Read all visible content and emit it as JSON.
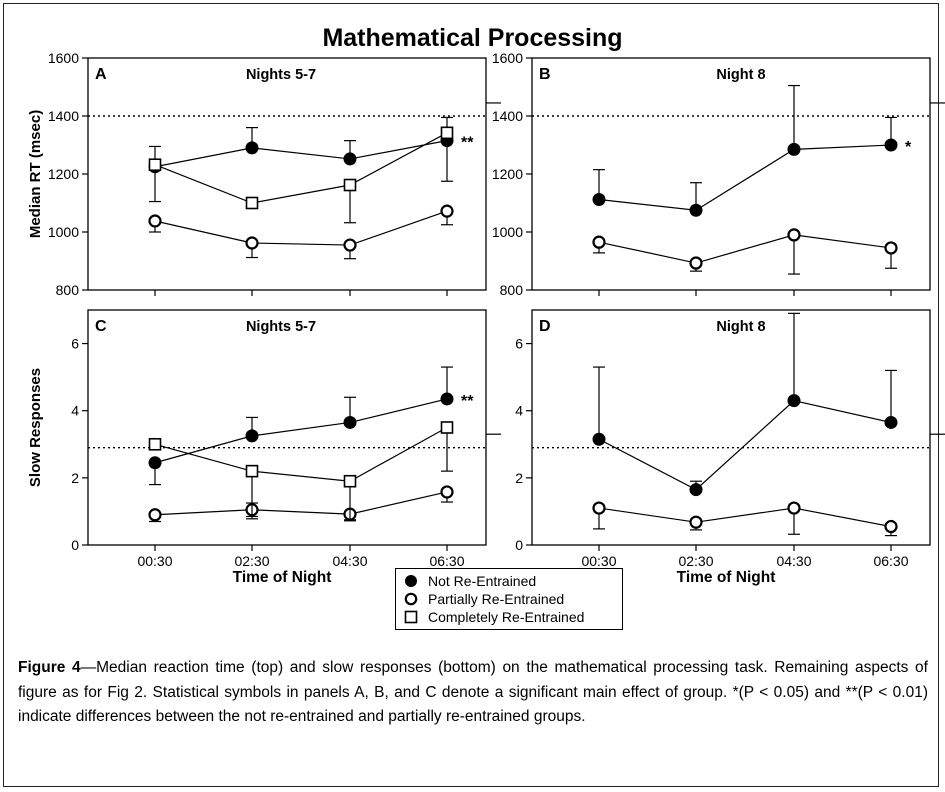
{
  "figure_title": "Mathematical Processing",
  "caption": {
    "label": "Figure 4",
    "text": "—Median reaction time (top) and slow responses (bottom) on the mathematical processing task. Remaining aspects of figure as for Fig 2. Statistical symbols in panels A, B, and C denote a significant main effect of group. *(P < 0.05) and **(P < 0.01) indicate differences between the not re-entrained and partially re-entrained groups."
  },
  "legend": [
    {
      "marker": "filled-circle",
      "label": "Not Re-Entrained"
    },
    {
      "marker": "open-circle",
      "label": "Partially Re-Entrained"
    },
    {
      "marker": "open-square",
      "label": "Completely Re-Entrained"
    }
  ],
  "chart_data": [
    {
      "panel": "A",
      "title": "Nights 5-7",
      "type": "line",
      "ylabel": "Median RT (msec)",
      "xlabel": "",
      "categories": [
        "00:30",
        "02:30",
        "04:30",
        "06:30"
      ],
      "ylim": [
        800,
        1600
      ],
      "yticks": [
        800,
        1000,
        1200,
        1400,
        1600
      ],
      "reference_line": 1400,
      "right_tick": 1445,
      "significance": "**",
      "series": [
        {
          "name": "Not Re-Entrained",
          "marker": "filled-circle",
          "values": [
            1225,
            1290,
            1252,
            1315
          ],
          "errors": [
            {
              "up": 1295,
              "down": 1105
            },
            {
              "up": 1360
            },
            {
              "up": 1315
            },
            {
              "up": 1395,
              "down": 1175
            }
          ]
        },
        {
          "name": "Partially Re-Entrained",
          "marker": "open-circle",
          "values": [
            1038,
            962,
            955,
            1072
          ],
          "errors": [
            {
              "down": 1000
            },
            {
              "down": 912
            },
            {
              "down": 908
            },
            {
              "down": 1025
            }
          ]
        },
        {
          "name": "Completely Re-Entrained",
          "marker": "open-square",
          "values": [
            1232,
            1100,
            1162,
            1342
          ],
          "errors": [
            {},
            {},
            {
              "down": 1032
            },
            {}
          ]
        }
      ]
    },
    {
      "panel": "B",
      "title": "Night 8",
      "type": "line",
      "ylabel": "",
      "xlabel": "",
      "categories": [
        "00:30",
        "02:30",
        "04:30",
        "06:30"
      ],
      "ylim": [
        800,
        1600
      ],
      "yticks": [
        800,
        1000,
        1200,
        1400,
        1600
      ],
      "reference_line": 1400,
      "right_tick": 1445,
      "significance": "*",
      "series": [
        {
          "name": "Not Re-Entrained",
          "marker": "filled-circle",
          "values": [
            1112,
            1075,
            1285,
            1300
          ],
          "errors": [
            {
              "up": 1215
            },
            {
              "up": 1170
            },
            {
              "up": 1505
            },
            {
              "up": 1395
            }
          ]
        },
        {
          "name": "Partially Re-Entrained",
          "marker": "open-circle",
          "values": [
            965,
            893,
            990,
            945
          ],
          "errors": [
            {
              "down": 928
            },
            {
              "down": 865
            },
            {
              "down": 855
            },
            {
              "down": 875
            }
          ]
        }
      ]
    },
    {
      "panel": "C",
      "title": "Nights 5-7",
      "type": "line",
      "ylabel": "Slow Responses",
      "xlabel": "Time of Night",
      "categories": [
        "00:30",
        "02:30",
        "04:30",
        "06:30"
      ],
      "ylim": [
        0,
        7
      ],
      "yticks": [
        0,
        2,
        4,
        6
      ],
      "reference_line": 2.9,
      "right_tick": 3.3,
      "significance": "**",
      "series": [
        {
          "name": "Not Re-Entrained",
          "marker": "filled-circle",
          "values": [
            2.45,
            3.25,
            3.65,
            4.35
          ],
          "errors": [
            {
              "down": 1.8
            },
            {
              "up": 3.8
            },
            {
              "up": 4.4
            },
            {
              "up": 5.3
            }
          ]
        },
        {
          "name": "Partially Re-Entrained",
          "marker": "open-circle",
          "values": [
            0.9,
            1.05,
            0.92,
            1.58
          ],
          "errors": [
            {
              "down": 0.7
            },
            {
              "up": 1.25,
              "down": 0.78
            },
            {
              "down": 0.72
            },
            {
              "down": 1.28
            }
          ]
        },
        {
          "name": "Completely Re-Entrained",
          "marker": "open-square",
          "values": [
            3.0,
            2.2,
            1.9,
            3.5
          ],
          "errors": [
            {},
            {
              "down": 0.85
            },
            {
              "down": 0.75
            },
            {
              "down": 2.2
            }
          ]
        }
      ]
    },
    {
      "panel": "D",
      "title": "Night 8",
      "type": "line",
      "ylabel": "",
      "xlabel": "Time of Night",
      "categories": [
        "00:30",
        "02:30",
        "04:30",
        "06:30"
      ],
      "ylim": [
        0,
        7
      ],
      "yticks": [
        0,
        2,
        4,
        6
      ],
      "reference_line": 2.9,
      "right_tick": 3.3,
      "significance": "",
      "series": [
        {
          "name": "Not Re-Entrained",
          "marker": "filled-circle",
          "values": [
            3.15,
            1.65,
            4.3,
            3.65
          ],
          "errors": [
            {
              "up": 5.3
            },
            {
              "up": 1.9
            },
            {
              "up": 6.9
            },
            {
              "up": 5.2
            }
          ]
        },
        {
          "name": "Partially Re-Entrained",
          "marker": "open-circle",
          "values": [
            1.1,
            0.68,
            1.1,
            0.55
          ],
          "errors": [
            {
              "down": 0.48
            },
            {
              "down": 0.45
            },
            {
              "down": 0.32
            },
            {
              "down": 0.28
            }
          ]
        }
      ]
    }
  ]
}
